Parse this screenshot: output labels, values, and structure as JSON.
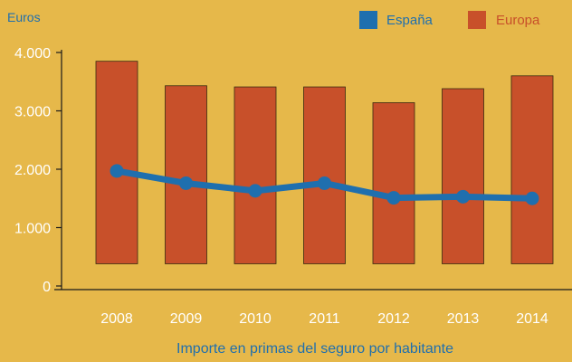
{
  "chart_data": {
    "type": "bar",
    "title": "",
    "ylabel": "Euros",
    "xlabel": "Importe en primas del seguro por habitante",
    "categories": [
      "2008",
      "2009",
      "2010",
      "2011",
      "2012",
      "2013",
      "2014"
    ],
    "ylim": [
      0,
      4000
    ],
    "y_ticks": [
      {
        "value": 0,
        "label": "0"
      },
      {
        "value": 1000,
        "label": "1.000"
      },
      {
        "value": 2000,
        "label": "2.000"
      },
      {
        "value": 3000,
        "label": "3.000"
      },
      {
        "value": 4000,
        "label": "4.000"
      }
    ],
    "grid": false,
    "legend_position": "top-right",
    "series": [
      {
        "name": "España",
        "type": "line",
        "color": "#1f6fae",
        "values": [
          1970,
          1760,
          1630,
          1760,
          1510,
          1530,
          1500
        ]
      },
      {
        "name": "Europa",
        "type": "bar",
        "color": "#c8502a",
        "values": [
          3850,
          3430,
          3410,
          3410,
          3140,
          3380,
          3600
        ],
        "bar_baseline": 380
      }
    ]
  }
}
